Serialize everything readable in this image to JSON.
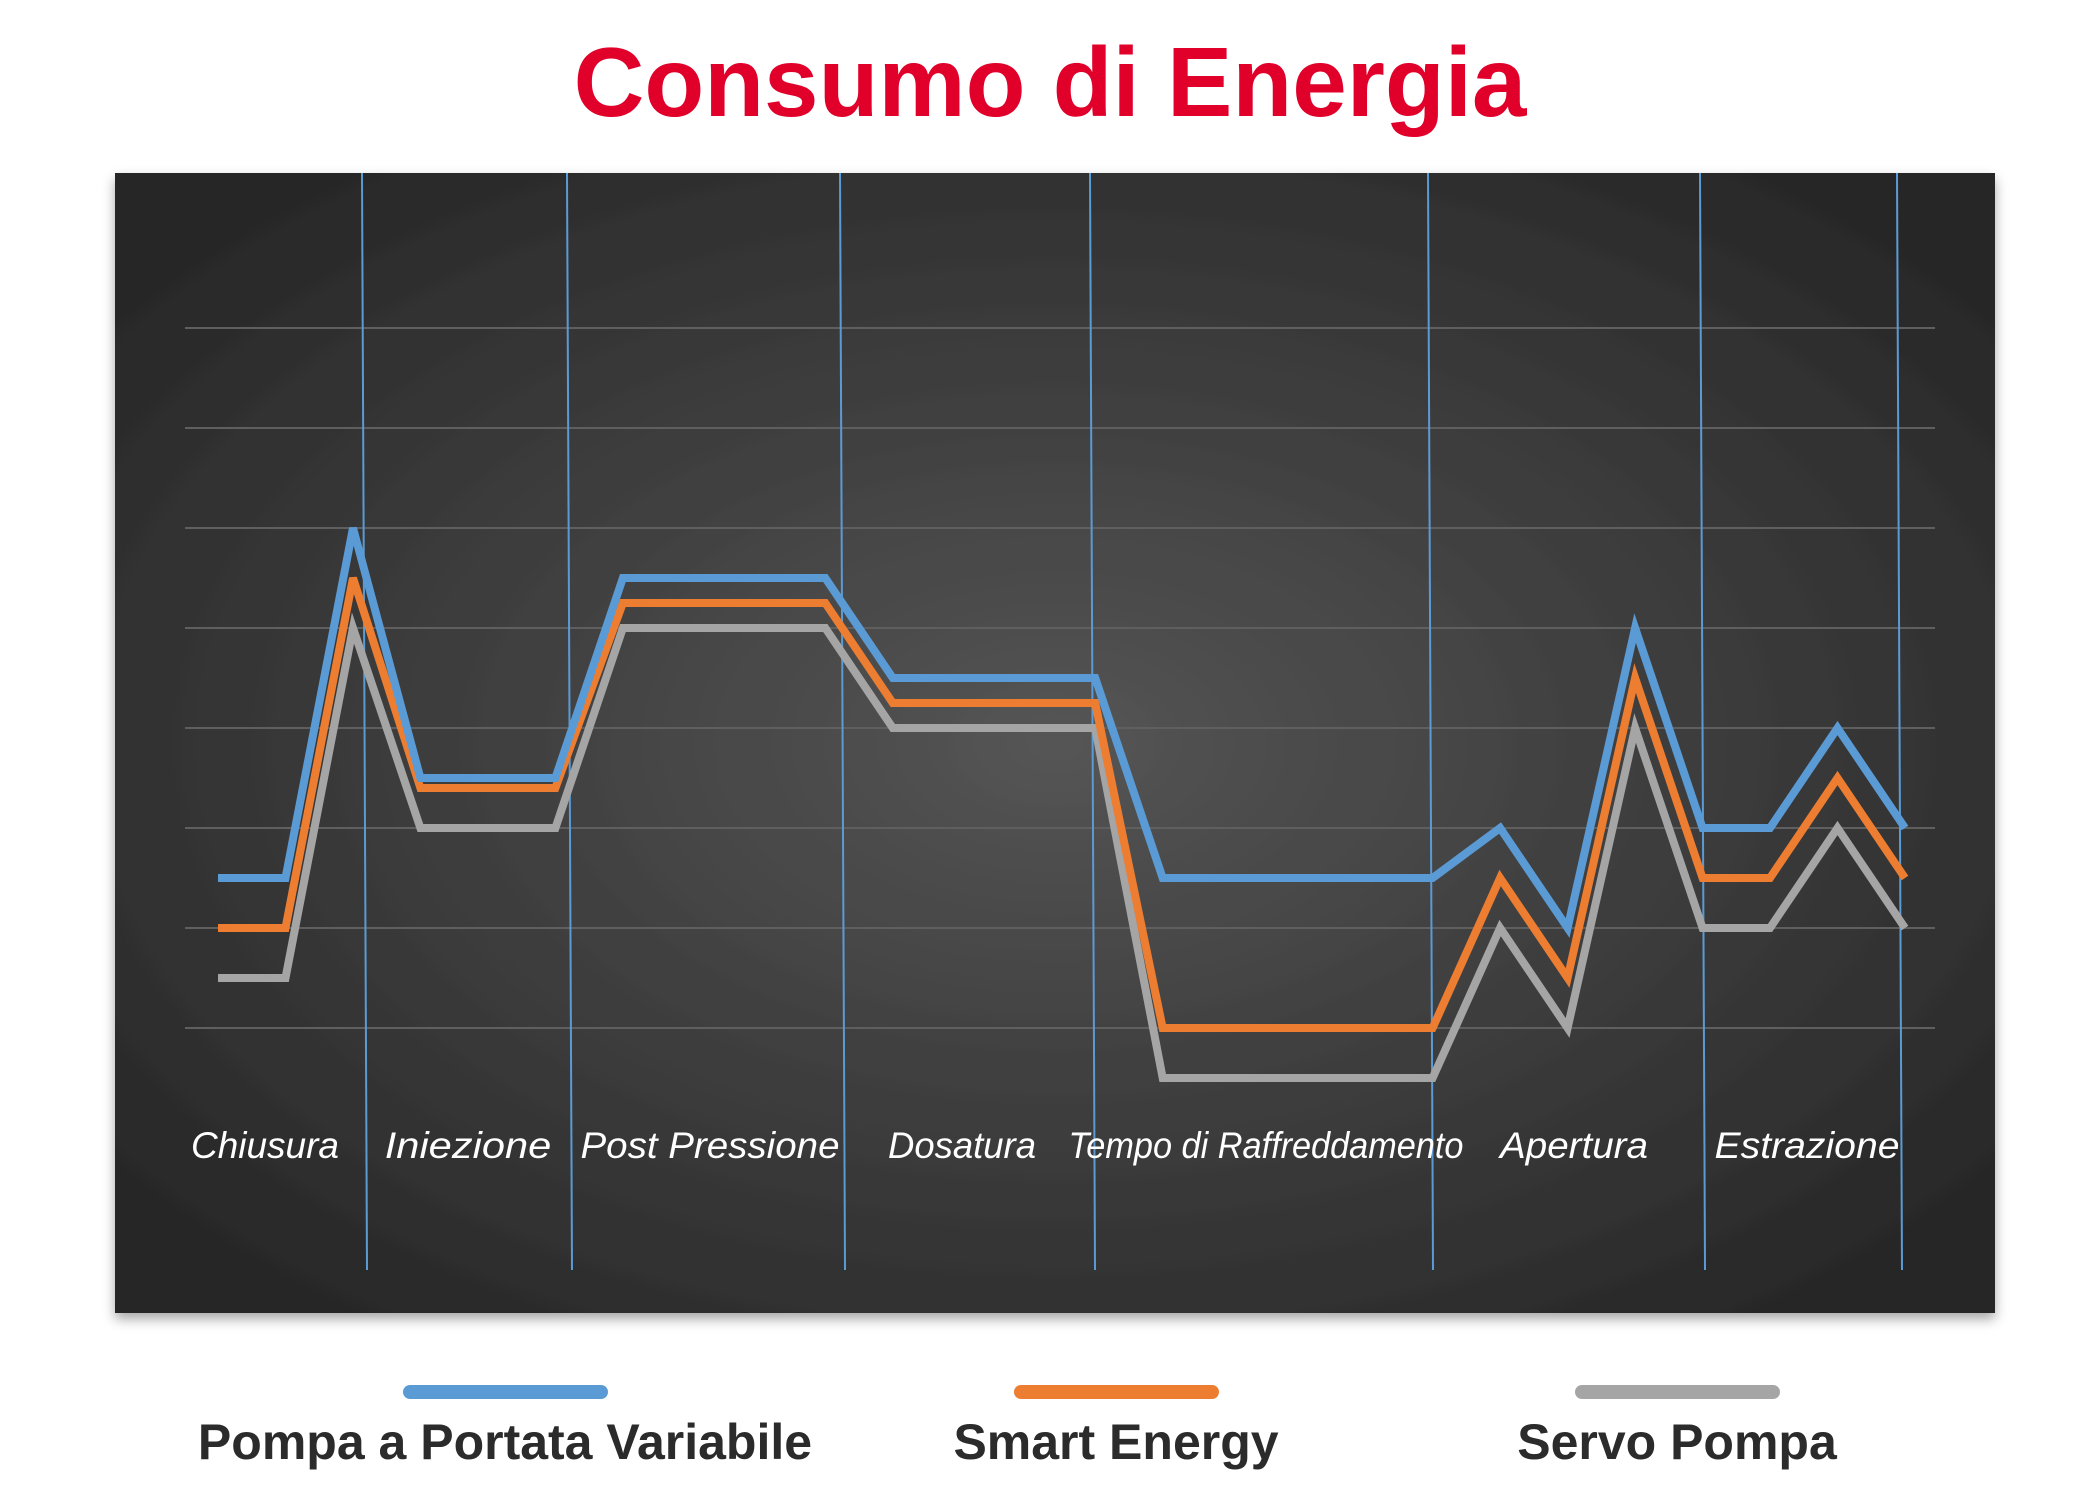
{
  "chart_data": {
    "type": "line",
    "title": "Consumo di Energia",
    "title_color": "#e0002a",
    "background": "#3a3a3a",
    "grid": true,
    "legend_position": "bottom",
    "phases": [
      "Chiusura",
      "Iniezione",
      "Post Pressione",
      "Dosatura",
      "Tempo di Raffreddamento",
      "Apertura",
      "Estrazione"
    ],
    "x": [
      0,
      1,
      2,
      3,
      4,
      5,
      6,
      7,
      8,
      9,
      10,
      11,
      12,
      13,
      14,
      15,
      16,
      17,
      18,
      19,
      20,
      21,
      22,
      23,
      24,
      25
    ],
    "ylim": [
      0,
      8
    ],
    "series": [
      {
        "name": "Pompa a Portata Variabile",
        "color": "#5b9bd5",
        "values": [
          2.5,
          2.5,
          6.0,
          3.5,
          3.5,
          3.5,
          5.5,
          5.5,
          5.5,
          5.5,
          4.5,
          4.5,
          4.5,
          4.5,
          2.5,
          2.5,
          2.5,
          2.5,
          2.5,
          3.0,
          2.0,
          5.0,
          3.0,
          3.0,
          4.0,
          3.0
        ]
      },
      {
        "name": "Smart Energy",
        "color": "#ed7d31",
        "values": [
          2.0,
          2.0,
          5.5,
          3.4,
          3.4,
          3.4,
          5.25,
          5.25,
          5.25,
          5.25,
          4.25,
          4.25,
          4.25,
          4.25,
          1.0,
          1.0,
          1.0,
          1.0,
          1.0,
          2.5,
          1.5,
          4.5,
          2.5,
          2.5,
          3.5,
          2.5
        ]
      },
      {
        "name": "Servo Pompa",
        "color": "#a5a5a5",
        "values": [
          1.5,
          1.5,
          5.0,
          3.0,
          3.0,
          3.0,
          5.0,
          5.0,
          5.0,
          5.0,
          4.0,
          4.0,
          4.0,
          4.0,
          0.5,
          0.5,
          0.5,
          0.5,
          0.5,
          2.0,
          1.0,
          4.0,
          2.0,
          2.0,
          3.0,
          2.0
        ]
      }
    ]
  }
}
